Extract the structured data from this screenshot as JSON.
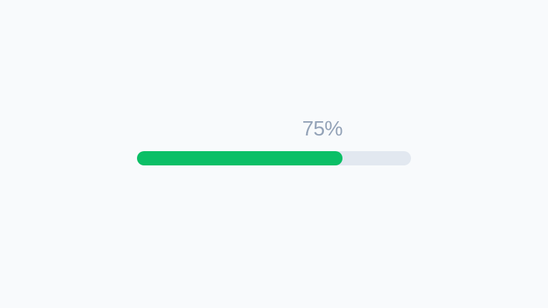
{
  "progress": {
    "percent": 75,
    "label": "75%",
    "colors": {
      "background": "#F8FAFC",
      "track": "#E2E8F0",
      "fill": "#0BBF66",
      "label": "#94A3B8"
    }
  }
}
